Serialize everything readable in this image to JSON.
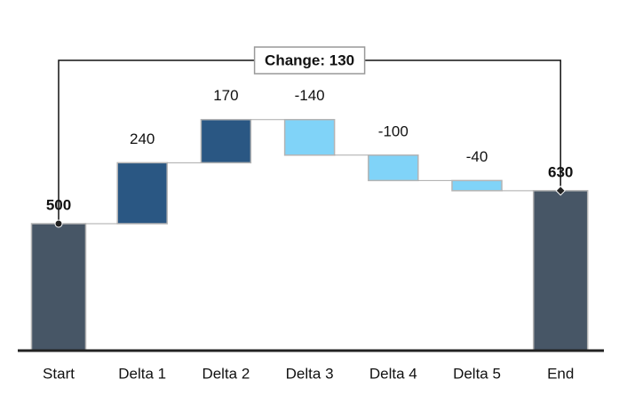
{
  "chart_data": {
    "type": "waterfall",
    "categories": [
      "Start",
      "Delta 1",
      "Delta 2",
      "Delta 3",
      "Delta 4",
      "Delta 5",
      "End"
    ],
    "values": [
      500,
      240,
      170,
      -140,
      -100,
      -40,
      630
    ],
    "colors": {
      "total": "#475666",
      "increase": "#2a5783",
      "decrease": "#80d3f8"
    },
    "ylim": [
      0,
      1000
    ],
    "annotation": "Change: 130"
  }
}
